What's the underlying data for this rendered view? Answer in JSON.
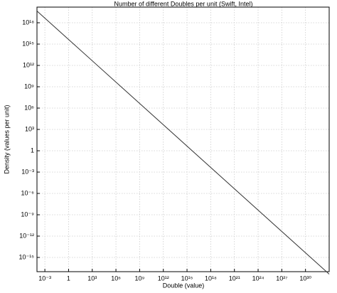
{
  "chart_data": {
    "type": "line",
    "title": "Number of different Doubles per unit (Swift, Intel)",
    "x_label": "Double (value)",
    "y_label": "Density (values per unit)",
    "x": [
      0.0001,
      1,
      1e+33
    ],
    "series": [
      {
        "name": "Density",
        "color": "#333333",
        "values": [
          4.5e+19,
          4500000000000000.0,
          4.5e-18
        ]
      }
    ],
    "xlim": [
      0.0001,
      1e+33
    ],
    "ylim": [
      1e-17,
      1e+20
    ],
    "xscale": "log",
    "yscale": "log",
    "grid": true,
    "xticks": [
      {
        "value": 0.001,
        "label": "10⁻³"
      },
      1,
      {
        "value": 1000,
        "label": "10³"
      },
      {
        "value": 1000000.0,
        "label": "10⁶"
      },
      {
        "value": 1000000000.0,
        "label": "10⁹"
      },
      {
        "value": 1000000000000.0,
        "label": "10¹²"
      },
      {
        "value": 1000000000000000.0,
        "label": "10¹⁵"
      },
      {
        "value": 1e+18,
        "label": "10¹⁸"
      },
      {
        "value": 1e+21,
        "label": "10²¹"
      },
      {
        "value": 1e+24,
        "label": "10²⁴"
      },
      {
        "value": 1e+27,
        "label": "10²⁷"
      },
      {
        "value": 1e+30,
        "label": "10³⁰"
      }
    ],
    "yticks": [
      {
        "value": 1e+18,
        "label": "10¹⁸"
      },
      {
        "value": 1000000000000000.0,
        "label": "10¹⁵"
      },
      {
        "value": 1000000000000.0,
        "label": "10¹²"
      },
      {
        "value": 1000000000.0,
        "label": "10⁹"
      },
      {
        "value": 1000000.0,
        "label": "10⁶"
      },
      {
        "value": 1000,
        "label": "10³"
      },
      1,
      {
        "value": 0.001,
        "label": "10⁻³"
      },
      {
        "value": 1e-06,
        "label": "10⁻⁶"
      },
      {
        "value": 1e-09,
        "label": "10⁻⁹"
      },
      {
        "value": 1e-12,
        "label": "10⁻¹²"
      },
      {
        "value": 1e-15,
        "label": "10⁻¹⁵"
      }
    ]
  }
}
